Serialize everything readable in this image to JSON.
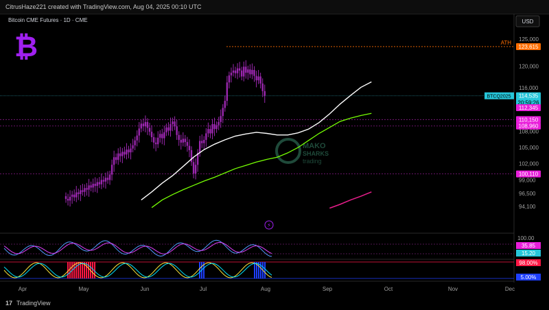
{
  "header": {
    "created_by": "CitrusHaze221 created with TradingView.com, Aug 04, 2025 00:10 UTC",
    "currency": "USD",
    "symbol_title": "Bitcoin CME Futures · 1D · CME"
  },
  "footer": {
    "brand": "TradingView"
  },
  "watermark": {
    "line1": "MAKO",
    "line2": "SHARKS",
    "line3": "trading"
  },
  "colors": {
    "background": "#000000",
    "candle": "#9c27b0",
    "ma_fast": "#ffffff",
    "ma_slow": "#76ff03",
    "ma_long": "#e91e8c",
    "ath_label": "#ff6d00",
    "magenta_label": "#e91eda",
    "cyan_label": "#26c6da",
    "blue_label": "#1e3fff",
    "red_label": "#ff1744"
  },
  "chart_data": {
    "type": "candlestick",
    "title": "Bitcoin CME Futures · 1D · CME",
    "y_axis_ticks": [
      125000,
      120000,
      116000,
      108000,
      105000,
      102000,
      99000,
      96500,
      94100
    ],
    "y_tick_labels": [
      "125,000",
      "120,000",
      "116,000",
      "108,000",
      "105,000",
      "102,000",
      "99,000",
      "96,500",
      "94,100"
    ],
    "x_tick_labels": [
      "Apr",
      "May",
      "Jun",
      "Jul",
      "Aug",
      "Sep",
      "Oct",
      "Nov",
      "Dec"
    ],
    "price_labels": [
      {
        "text": "123,615",
        "value": 123615,
        "tag": "ATH",
        "color": "#ff6d00"
      },
      {
        "text": "114,535",
        "value": 114535,
        "tag": "BTCQ2025",
        "sub": "20:59:26",
        "color": "#26c6da"
      },
      {
        "text": "112,345",
        "value": 112345,
        "color": "#e91eda"
      },
      {
        "text": "110,150",
        "value": 110150,
        "color": "#e91eda"
      },
      {
        "text": "108,960",
        "value": 108960,
        "color": "#e91eda"
      },
      {
        "text": "100,110",
        "value": 100110,
        "color": "#e91eda"
      }
    ],
    "closes": [
      95500,
      95200,
      95900,
      96300,
      95800,
      96700,
      96400,
      97100,
      96800,
      97500,
      97200,
      98000,
      97600,
      98300,
      97900,
      98600,
      98200,
      99000,
      98700,
      99400,
      99000,
      100000,
      101800,
      103200,
      102700,
      103900,
      103400,
      104200,
      103700,
      104600,
      104100,
      104800,
      105400,
      106300,
      107200,
      108500,
      109400,
      108900,
      109700,
      108600,
      107900,
      106900,
      105900,
      105600,
      106800,
      107500,
      106700,
      107800,
      108700,
      108100,
      109300,
      109800,
      108900,
      107300,
      106400,
      105900,
      106600,
      106000,
      105300,
      104500,
      102300,
      100200,
      101800,
      104000,
      106200,
      105800,
      106400,
      107600,
      108400,
      107600,
      109300,
      108400,
      109100,
      109700,
      110800,
      112300,
      113600,
      117000,
      118300,
      118800,
      119200,
      118700,
      119600,
      119200,
      118100,
      119900,
      118800,
      119400,
      118500,
      119300,
      118200,
      117400,
      118100,
      116800,
      115400,
      114535
    ],
    "ma_fast": [
      [
        36,
        95300
      ],
      [
        41,
        96800
      ],
      [
        46,
        98400
      ],
      [
        51,
        99800
      ],
      [
        56,
        101500
      ],
      [
        61,
        103200
      ],
      [
        66,
        104600
      ],
      [
        71,
        105600
      ],
      [
        76,
        106400
      ],
      [
        81,
        107100
      ],
      [
        86,
        107500
      ],
      [
        91,
        107800
      ],
      [
        96,
        107600
      ],
      [
        101,
        107300
      ],
      [
        106,
        107300
      ],
      [
        111,
        107700
      ],
      [
        116,
        108400
      ],
      [
        121,
        109600
      ],
      [
        126,
        111200
      ],
      [
        131,
        113000
      ],
      [
        136,
        114600
      ],
      [
        141,
        116100
      ],
      [
        146,
        117100
      ]
    ],
    "ma_slow": [
      [
        41,
        93900
      ],
      [
        46,
        95300
      ],
      [
        51,
        96300
      ],
      [
        56,
        97200
      ],
      [
        61,
        98000
      ],
      [
        66,
        98800
      ],
      [
        71,
        99500
      ],
      [
        76,
        100300
      ],
      [
        81,
        101100
      ],
      [
        86,
        101700
      ],
      [
        91,
        102300
      ],
      [
        96,
        102800
      ],
      [
        101,
        103200
      ],
      [
        106,
        104000
      ],
      [
        111,
        105000
      ],
      [
        116,
        106300
      ],
      [
        121,
        107600
      ],
      [
        126,
        108700
      ],
      [
        131,
        109800
      ],
      [
        136,
        110400
      ],
      [
        141,
        110900
      ],
      [
        146,
        111300
      ]
    ],
    "ma_long": [
      [
        126,
        93800
      ],
      [
        131,
        94500
      ],
      [
        136,
        95300
      ],
      [
        141,
        96000
      ],
      [
        146,
        96800
      ]
    ],
    "rsi": {
      "labels": [
        {
          "text": "35.85",
          "color": "#e91eda"
        },
        {
          "text": "15.20",
          "color": "#26c6da"
        }
      ],
      "top_tick": "100.00"
    },
    "oscillator": {
      "labels": [
        {
          "text": "98.00%",
          "color": "#ff1744"
        },
        {
          "text": "5.00%",
          "color": "#1e3fff"
        }
      ]
    }
  }
}
